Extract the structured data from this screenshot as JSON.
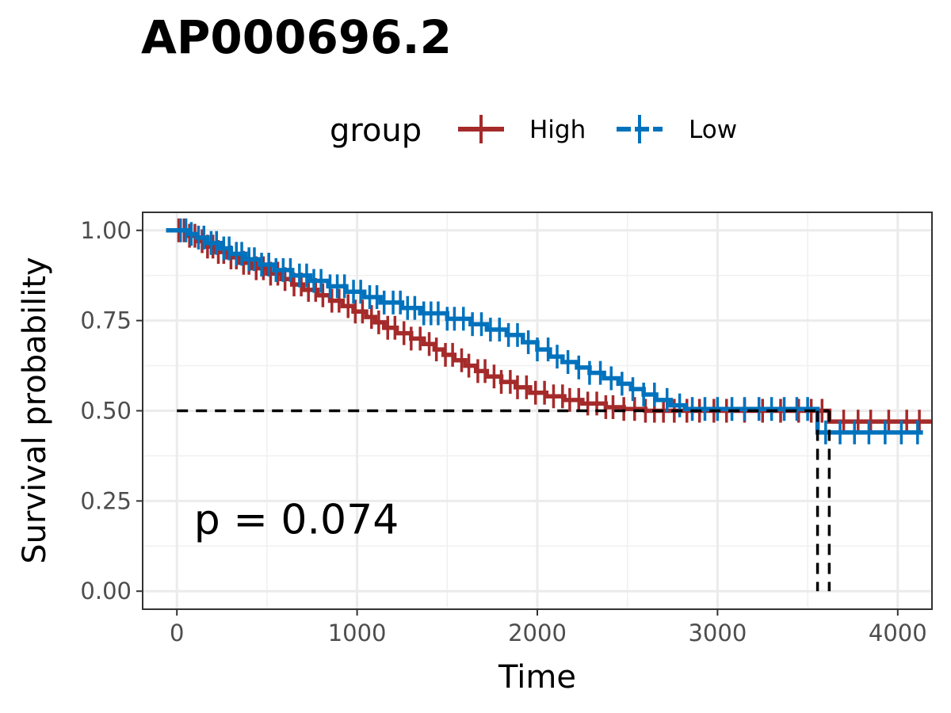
{
  "chart_data": {
    "type": "line",
    "subtype": "kaplan-meier",
    "title": "AP000696.2",
    "xlabel": "Time",
    "ylabel": "Survival probability",
    "xlim": [
      -190,
      4190
    ],
    "ylim": [
      -0.05,
      1.05
    ],
    "x_ticks": [
      0,
      1000,
      2000,
      3000,
      4000
    ],
    "x_tick_labels": [
      "0",
      "1000",
      "2000",
      "3000",
      "4000"
    ],
    "y_ticks": [
      0,
      0.25,
      0.5,
      0.75,
      1.0
    ],
    "y_tick_labels": [
      "0.00",
      "0.25",
      "0.50",
      "0.75",
      "1.00"
    ],
    "grid": true,
    "legend": {
      "title": "group",
      "position": "top"
    },
    "annotation": "p = 0.074",
    "median_line": {
      "y": 0.5,
      "x_end": 3620,
      "medians": [
        3555,
        3620
      ]
    },
    "series": [
      {
        "name": "High",
        "color": "#A52A2A",
        "steps": [
          [
            -60,
            1.0
          ],
          [
            60,
            0.985
          ],
          [
            110,
            0.97
          ],
          [
            160,
            0.955
          ],
          [
            210,
            0.94
          ],
          [
            280,
            0.925
          ],
          [
            350,
            0.91
          ],
          [
            420,
            0.895
          ],
          [
            500,
            0.88
          ],
          [
            580,
            0.865
          ],
          [
            640,
            0.85
          ],
          [
            700,
            0.835
          ],
          [
            780,
            0.82
          ],
          [
            850,
            0.805
          ],
          [
            920,
            0.79
          ],
          [
            980,
            0.775
          ],
          [
            1050,
            0.76
          ],
          [
            1100,
            0.745
          ],
          [
            1150,
            0.73
          ],
          [
            1220,
            0.715
          ],
          [
            1300,
            0.7
          ],
          [
            1370,
            0.685
          ],
          [
            1430,
            0.67
          ],
          [
            1480,
            0.655
          ],
          [
            1540,
            0.64
          ],
          [
            1600,
            0.625
          ],
          [
            1660,
            0.61
          ],
          [
            1720,
            0.595
          ],
          [
            1800,
            0.58
          ],
          [
            1880,
            0.565
          ],
          [
            1960,
            0.55
          ],
          [
            2050,
            0.54
          ],
          [
            2150,
            0.53
          ],
          [
            2250,
            0.52
          ],
          [
            2380,
            0.51
          ],
          [
            2480,
            0.505
          ],
          [
            2600,
            0.5
          ],
          [
            3620,
            0.5
          ],
          [
            3620,
            0.47
          ],
          [
            4190,
            0.47
          ]
        ],
        "censor_times": [
          10,
          40,
          70,
          100,
          140,
          170,
          200,
          230,
          260,
          300,
          330,
          370,
          400,
          440,
          480,
          520,
          560,
          600,
          650,
          690,
          730,
          770,
          810,
          860,
          900,
          950,
          990,
          1030,
          1080,
          1120,
          1170,
          1210,
          1260,
          1300,
          1350,
          1400,
          1440,
          1490,
          1530,
          1580,
          1620,
          1670,
          1710,
          1760,
          1800,
          1850,
          1890,
          1940,
          1990,
          2040,
          2090,
          2140,
          2180,
          2230,
          2280,
          2330,
          2380,
          2420,
          2480,
          2540,
          2600,
          2650,
          2700,
          2760,
          2830,
          2900,
          2980,
          3050,
          3150,
          3250,
          3350,
          3450,
          3520,
          3580,
          3700,
          3780,
          3850,
          3950,
          4050,
          4120
        ]
      },
      {
        "name": "Low",
        "color": "#0072BD",
        "steps": [
          [
            -60,
            1.0
          ],
          [
            60,
            0.99
          ],
          [
            110,
            0.98
          ],
          [
            170,
            0.965
          ],
          [
            240,
            0.95
          ],
          [
            300,
            0.935
          ],
          [
            380,
            0.92
          ],
          [
            460,
            0.905
          ],
          [
            540,
            0.89
          ],
          [
            640,
            0.875
          ],
          [
            740,
            0.86
          ],
          [
            840,
            0.845
          ],
          [
            940,
            0.83
          ],
          [
            1040,
            0.815
          ],
          [
            1130,
            0.8
          ],
          [
            1250,
            0.785
          ],
          [
            1350,
            0.77
          ],
          [
            1500,
            0.755
          ],
          [
            1630,
            0.74
          ],
          [
            1720,
            0.725
          ],
          [
            1830,
            0.71
          ],
          [
            1920,
            0.69
          ],
          [
            2000,
            0.67
          ],
          [
            2070,
            0.65
          ],
          [
            2140,
            0.635
          ],
          [
            2220,
            0.62
          ],
          [
            2290,
            0.605
          ],
          [
            2370,
            0.59
          ],
          [
            2450,
            0.575
          ],
          [
            2520,
            0.56
          ],
          [
            2590,
            0.545
          ],
          [
            2660,
            0.53
          ],
          [
            2740,
            0.515
          ],
          [
            2820,
            0.505
          ],
          [
            3555,
            0.505
          ],
          [
            3555,
            0.44
          ],
          [
            4140,
            0.44
          ]
        ],
        "censor_times": [
          20,
          50,
          80,
          120,
          150,
          190,
          220,
          260,
          290,
          330,
          360,
          400,
          430,
          470,
          510,
          550,
          590,
          630,
          680,
          720,
          760,
          800,
          850,
          890,
          930,
          980,
          1020,
          1070,
          1110,
          1150,
          1200,
          1240,
          1280,
          1320,
          1370,
          1410,
          1450,
          1500,
          1540,
          1590,
          1640,
          1690,
          1740,
          1790,
          1840,
          1890,
          1950,
          2000,
          2060,
          2110,
          2170,
          2230,
          2290,
          2350,
          2410,
          2470,
          2530,
          2590,
          2650,
          2720,
          2790,
          2860,
          2930,
          3000,
          3080,
          3150,
          3230,
          3300,
          3370,
          3440,
          3500,
          3600,
          3680,
          3760,
          3840,
          3930,
          4020,
          4110
        ]
      }
    ]
  }
}
